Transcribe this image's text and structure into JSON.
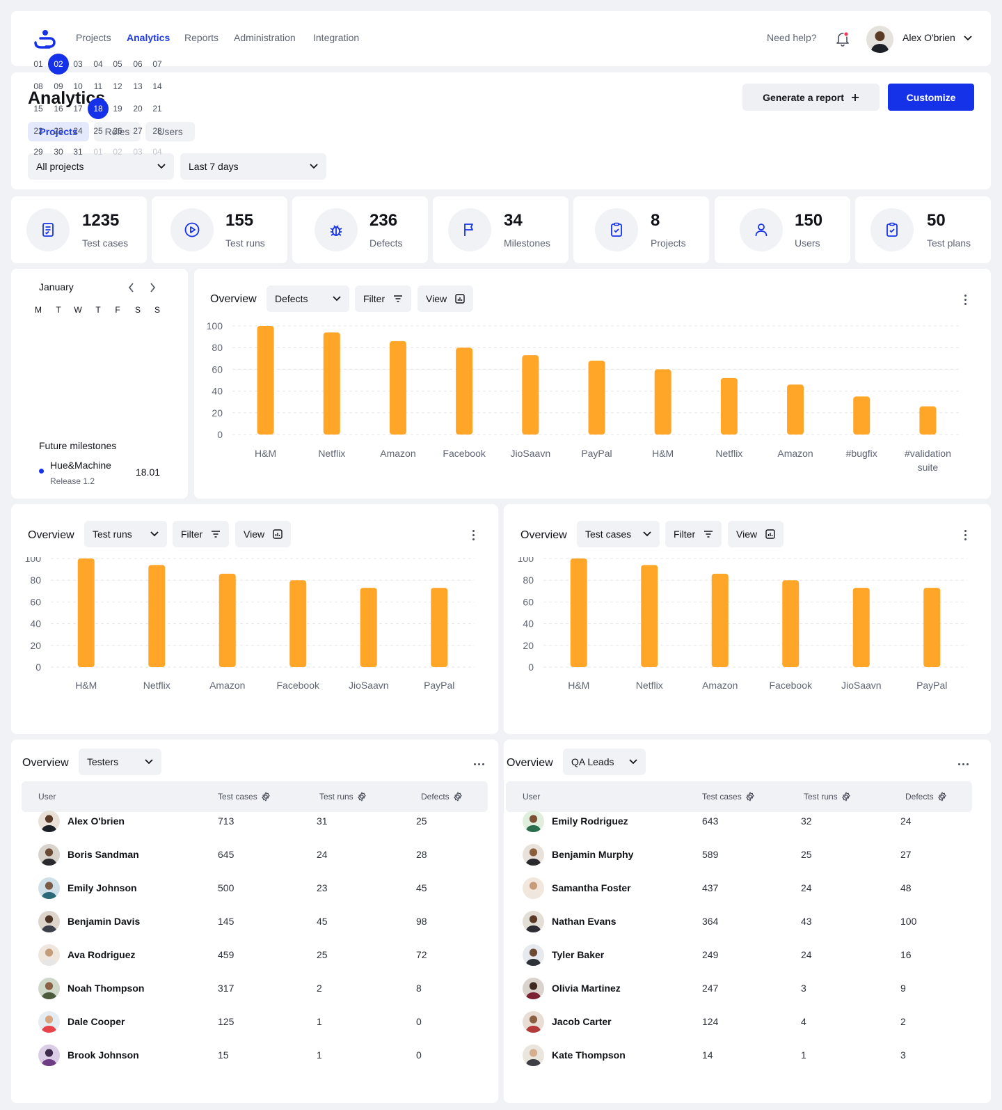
{
  "nav": {
    "items": [
      "Projects",
      "Analytics",
      "Reports",
      "Administration",
      "Integration"
    ],
    "active": "Analytics",
    "help": "Need help?",
    "user_name": "Alex O'brien"
  },
  "analytics": {
    "title": "Analytics",
    "generate_label": "Generate a report",
    "customize_label": "Customize",
    "tabs": [
      "Projects",
      "Roles",
      "Users"
    ],
    "project_select": "All projects",
    "period_select": "Last 7 days"
  },
  "stats": [
    {
      "value": "1235",
      "label": "Test cases",
      "icon": "test-cases-icon"
    },
    {
      "value": "155",
      "label": "Test runs",
      "icon": "play-icon"
    },
    {
      "value": "236",
      "label": "Defects",
      "icon": "bug-icon"
    },
    {
      "value": "34",
      "label": "Milestones",
      "icon": "flag-icon"
    },
    {
      "value": "8",
      "label": "Projects",
      "icon": "clipboard-check-icon"
    },
    {
      "value": "150",
      "label": "Users",
      "icon": "user-icon"
    },
    {
      "value": "50",
      "label": "Test plans",
      "icon": "clipboard-check-icon"
    }
  ],
  "calendar": {
    "month": "January",
    "weekdays": [
      "M",
      "T",
      "W",
      "T",
      "F",
      "S",
      "S"
    ],
    "weeks": [
      [
        "01",
        "02",
        "03",
        "04",
        "05",
        "06",
        "07"
      ],
      [
        "08",
        "09",
        "10",
        "11",
        "12",
        "13",
        "14"
      ],
      [
        "15",
        "16",
        "17",
        "18",
        "19",
        "20",
        "21"
      ],
      [
        "22",
        "23",
        "24",
        "25",
        "26",
        "27",
        "28"
      ],
      [
        "29",
        "30",
        "31",
        "01",
        "02",
        "03",
        "04"
      ]
    ],
    "selected": [
      "02",
      "18"
    ],
    "milestones_title": "Future milestones",
    "milestone": {
      "name": "Hue&Machine",
      "release": "Release 1.2",
      "date": "18.01"
    }
  },
  "common": {
    "overview": "Overview",
    "filter": "Filter",
    "view": "View"
  },
  "colors": {
    "accent": "#1532E8",
    "bar": "#FFA629"
  },
  "chart_data": [
    {
      "type": "bar",
      "selector": "Defects",
      "categories": [
        "H&M",
        "Netflix",
        "Amazon",
        "Facebook",
        "JioSaavn",
        "PayPal",
        "H&M",
        "Netflix",
        "Amazon",
        "#bugfix",
        "#validationsuite"
      ],
      "values": [
        100,
        94,
        86,
        80,
        73,
        68,
        60,
        52,
        46,
        35,
        26
      ],
      "ylim": [
        0,
        100
      ],
      "yticks": [
        0,
        20,
        40,
        60,
        80,
        100
      ]
    },
    {
      "type": "bar",
      "selector": "Test runs",
      "categories": [
        "H&M",
        "Netflix",
        "Amazon",
        "Facebook",
        "JioSaavn",
        "PayPal"
      ],
      "values": [
        100,
        94,
        86,
        80,
        73,
        73
      ],
      "ylim": [
        0,
        100
      ],
      "yticks": [
        0,
        20,
        40,
        60,
        80,
        100
      ]
    },
    {
      "type": "bar",
      "selector": "Test cases",
      "categories": [
        "H&M",
        "Netflix",
        "Amazon",
        "Facebook",
        "JioSaavn",
        "PayPal"
      ],
      "values": [
        100,
        94,
        86,
        80,
        73,
        73
      ],
      "ylim": [
        0,
        100
      ],
      "yticks": [
        0,
        20,
        40,
        60,
        80,
        100
      ]
    }
  ],
  "tables": [
    {
      "selector": "Testers",
      "columns": [
        "User",
        "Test cases",
        "Test runs",
        "Defects"
      ],
      "rows": [
        [
          "Alex O'brien",
          "713",
          "31",
          "25"
        ],
        [
          "Boris Sandman",
          "645",
          "24",
          "28"
        ],
        [
          "Emily Johnson",
          "500",
          "23",
          "45"
        ],
        [
          "Benjamin Davis",
          "145",
          "45",
          "98"
        ],
        [
          "Ava Rodriguez",
          "459",
          "25",
          "72"
        ],
        [
          "Noah Thompson",
          "317",
          "2",
          "8"
        ],
        [
          "Dale Cooper",
          "125",
          "1",
          "0"
        ],
        [
          "Brook Johnson",
          "15",
          "1",
          "0"
        ]
      ]
    },
    {
      "selector": "QA Leads",
      "columns": [
        "User",
        "Test cases",
        "Test runs",
        "Defects"
      ],
      "rows": [
        [
          "Emily Rodriguez",
          "643",
          "32",
          "24"
        ],
        [
          "Benjamin Murphy",
          "589",
          "25",
          "27"
        ],
        [
          "Samantha Foster",
          "437",
          "24",
          "48"
        ],
        [
          "Nathan Evans",
          "364",
          "43",
          "100"
        ],
        [
          "Tyler Baker",
          "249",
          "24",
          "16"
        ],
        [
          "Olivia Martinez",
          "247",
          "3",
          "9"
        ],
        [
          "Jacob Carter",
          "124",
          "4",
          "2"
        ],
        [
          "Kate Thompson",
          "14",
          "1",
          "3"
        ]
      ]
    }
  ]
}
